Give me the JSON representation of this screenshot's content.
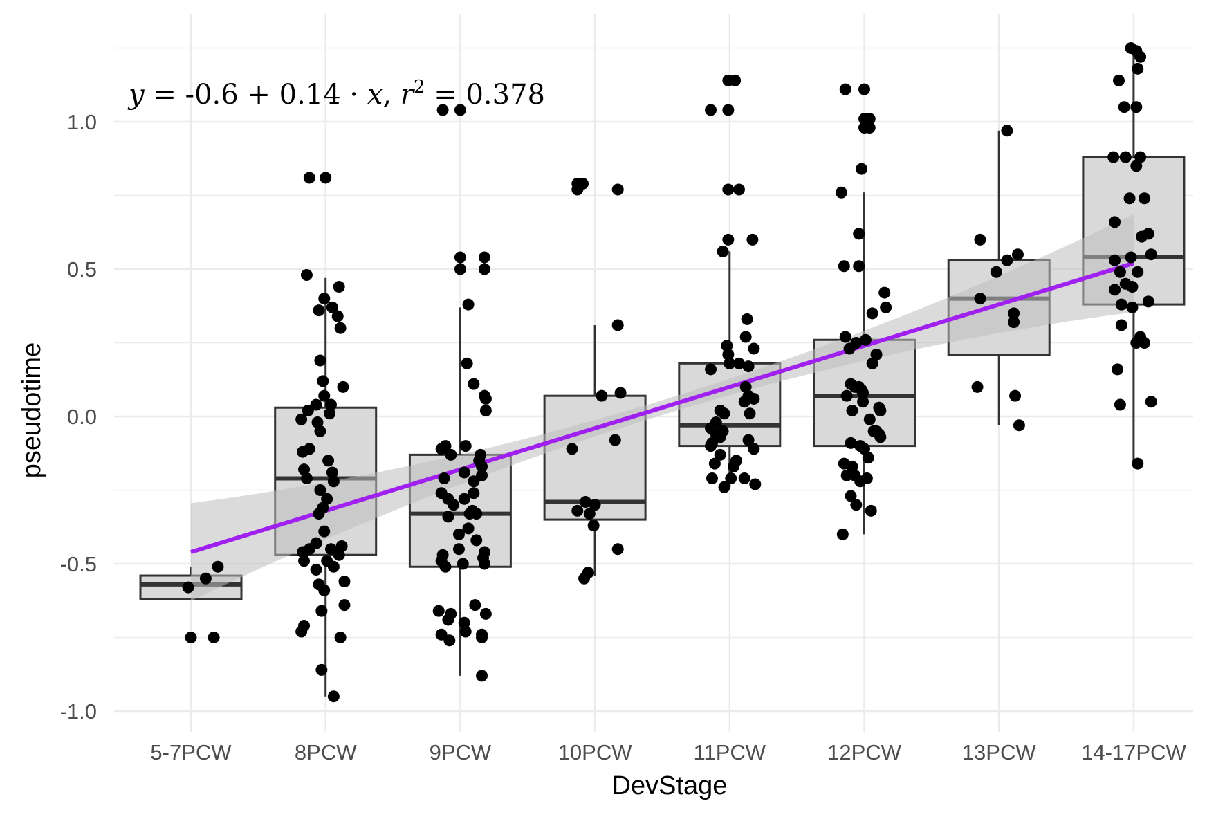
{
  "chart_data": {
    "type": "box",
    "xlabel": "DevStage",
    "ylabel": "pseudotime",
    "categories": [
      "5-7PCW",
      "8PCW",
      "9PCW",
      "10PCW",
      "11PCW",
      "12PCW",
      "13PCW",
      "14-17PCW"
    ],
    "y_ticks": [
      -1.0,
      -0.5,
      0.0,
      0.5,
      1.0
    ],
    "y_tick_labels": [
      "-1.0",
      "-0.5",
      "0.0",
      "0.5",
      "1.0"
    ],
    "ylim": [
      -1.08,
      1.27
    ],
    "grid": true,
    "legend": "none",
    "annotation": {
      "lhs": "y",
      "eq_rhs": " = -0.6 + 0.14 · ",
      "x_var": "x",
      "sep": ",  ",
      "r_var": "r",
      "r_exp": "2",
      "r_rhs": " = 0.378"
    },
    "regression": {
      "intercept": -0.6,
      "slope": 0.14,
      "r2": 0.378,
      "color": "#a020f0"
    },
    "colors": {
      "box_fill": "#d9d9d9",
      "box_stroke": "#333333",
      "point": "#000000",
      "ribbon": "#bebebe",
      "grid": "#ebebeb"
    },
    "boxes": [
      {
        "category": "5-7PCW",
        "q1": -0.62,
        "median": -0.57,
        "q3": -0.54,
        "whisker_low": -0.62,
        "whisker_high": -0.51
      },
      {
        "category": "8PCW",
        "q1": -0.47,
        "median": -0.21,
        "q3": 0.03,
        "whisker_low": -0.95,
        "whisker_high": 0.47
      },
      {
        "category": "9PCW",
        "q1": -0.51,
        "median": -0.33,
        "q3": -0.13,
        "whisker_low": -0.88,
        "whisker_high": 0.37
      },
      {
        "category": "10PCW",
        "q1": -0.35,
        "median": -0.29,
        "q3": 0.07,
        "whisker_low": -0.54,
        "whisker_high": 0.31
      },
      {
        "category": "11PCW",
        "q1": -0.1,
        "median": -0.03,
        "q3": 0.18,
        "whisker_low": -0.24,
        "whisker_high": 0.56
      },
      {
        "category": "12PCW",
        "q1": -0.1,
        "median": 0.07,
        "q3": 0.26,
        "whisker_low": -0.4,
        "whisker_high": 0.76
      },
      {
        "category": "13PCW",
        "q1": 0.21,
        "median": 0.4,
        "q3": 0.53,
        "whisker_low": -0.03,
        "whisker_high": 0.97
      },
      {
        "category": "14-17PCW",
        "q1": 0.38,
        "median": 0.54,
        "q3": 0.88,
        "whisker_low": -0.16,
        "whisker_high": 1.25
      }
    ],
    "points": [
      {
        "x": 0.98,
        "y": -0.58
      },
      {
        "x": 1.11,
        "y": -0.55
      },
      {
        "x": 1.2,
        "y": -0.51
      },
      {
        "x": 1.0,
        "y": -0.75
      },
      {
        "x": 1.17,
        "y": -0.75
      },
      {
        "x": 1.88,
        "y": 0.81
      },
      {
        "x": 2.0,
        "y": 0.81
      },
      {
        "x": 1.86,
        "y": 0.48
      },
      {
        "x": 2.1,
        "y": 0.44
      },
      {
        "x": 1.99,
        "y": 0.4
      },
      {
        "x": 2.05,
        "y": 0.37
      },
      {
        "x": 1.95,
        "y": 0.36
      },
      {
        "x": 2.09,
        "y": 0.34
      },
      {
        "x": 2.11,
        "y": 0.3
      },
      {
        "x": 1.96,
        "y": 0.19
      },
      {
        "x": 1.98,
        "y": 0.12
      },
      {
        "x": 2.13,
        "y": 0.1
      },
      {
        "x": 1.99,
        "y": 0.07
      },
      {
        "x": 1.93,
        "y": 0.04
      },
      {
        "x": 2.04,
        "y": 0.04
      },
      {
        "x": 1.87,
        "y": 0.02
      },
      {
        "x": 2.03,
        "y": 0.01
      },
      {
        "x": 1.82,
        "y": -0.01
      },
      {
        "x": 1.94,
        "y": -0.02
      },
      {
        "x": 1.96,
        "y": -0.05
      },
      {
        "x": 1.88,
        "y": -0.11
      },
      {
        "x": 1.83,
        "y": -0.12
      },
      {
        "x": 2.02,
        "y": -0.15
      },
      {
        "x": 1.84,
        "y": -0.18
      },
      {
        "x": 2.05,
        "y": -0.19
      },
      {
        "x": 1.86,
        "y": -0.21
      },
      {
        "x": 2.06,
        "y": -0.22
      },
      {
        "x": 1.96,
        "y": -0.25
      },
      {
        "x": 2.01,
        "y": -0.28
      },
      {
        "x": 1.98,
        "y": -0.31
      },
      {
        "x": 1.95,
        "y": -0.33
      },
      {
        "x": 1.99,
        "y": -0.39
      },
      {
        "x": 1.93,
        "y": -0.43
      },
      {
        "x": 2.12,
        "y": -0.44
      },
      {
        "x": 1.88,
        "y": -0.45
      },
      {
        "x": 2.04,
        "y": -0.45
      },
      {
        "x": 1.83,
        "y": -0.46
      },
      {
        "x": 2.1,
        "y": -0.47
      },
      {
        "x": 2.01,
        "y": -0.49
      },
      {
        "x": 1.84,
        "y": -0.49
      },
      {
        "x": 2.06,
        "y": -0.51
      },
      {
        "x": 1.93,
        "y": -0.52
      },
      {
        "x": 2.14,
        "y": -0.56
      },
      {
        "x": 1.95,
        "y": -0.57
      },
      {
        "x": 1.99,
        "y": -0.59
      },
      {
        "x": 2.14,
        "y": -0.64
      },
      {
        "x": 1.97,
        "y": -0.66
      },
      {
        "x": 1.84,
        "y": -0.71
      },
      {
        "x": 1.82,
        "y": -0.73
      },
      {
        "x": 2.11,
        "y": -0.75
      },
      {
        "x": 1.97,
        "y": -0.86
      },
      {
        "x": 2.06,
        "y": -0.95
      },
      {
        "x": 2.87,
        "y": 1.04
      },
      {
        "x": 3.0,
        "y": 1.04
      },
      {
        "x": 3.0,
        "y": 0.54
      },
      {
        "x": 3.18,
        "y": 0.54
      },
      {
        "x": 3.0,
        "y": 0.5
      },
      {
        "x": 3.18,
        "y": 0.5
      },
      {
        "x": 3.06,
        "y": 0.38
      },
      {
        "x": 3.05,
        "y": 0.18
      },
      {
        "x": 3.1,
        "y": 0.11
      },
      {
        "x": 3.18,
        "y": 0.07
      },
      {
        "x": 3.19,
        "y": 0.06
      },
      {
        "x": 3.19,
        "y": 0.02
      },
      {
        "x": 2.89,
        "y": -0.1
      },
      {
        "x": 2.86,
        "y": -0.11
      },
      {
        "x": 3.04,
        "y": -0.1
      },
      {
        "x": 3.15,
        "y": -0.13
      },
      {
        "x": 3.14,
        "y": -0.15
      },
      {
        "x": 2.93,
        "y": -0.13
      },
      {
        "x": 3.16,
        "y": -0.17
      },
      {
        "x": 3.16,
        "y": -0.2
      },
      {
        "x": 3.03,
        "y": -0.19
      },
      {
        "x": 2.88,
        "y": -0.21
      },
      {
        "x": 3.1,
        "y": -0.22
      },
      {
        "x": 2.86,
        "y": -0.26
      },
      {
        "x": 2.91,
        "y": -0.28
      },
      {
        "x": 3.1,
        "y": -0.26
      },
      {
        "x": 3.03,
        "y": -0.28
      },
      {
        "x": 2.95,
        "y": -0.3
      },
      {
        "x": 3.07,
        "y": -0.33
      },
      {
        "x": 3.09,
        "y": -0.32
      },
      {
        "x": 2.91,
        "y": -0.34
      },
      {
        "x": 3.12,
        "y": -0.33
      },
      {
        "x": 3.06,
        "y": -0.38
      },
      {
        "x": 2.99,
        "y": -0.4
      },
      {
        "x": 3.12,
        "y": -0.42
      },
      {
        "x": 3.18,
        "y": -0.46
      },
      {
        "x": 2.99,
        "y": -0.45
      },
      {
        "x": 3.17,
        "y": -0.48
      },
      {
        "x": 2.87,
        "y": -0.47
      },
      {
        "x": 2.86,
        "y": -0.49
      },
      {
        "x": 3.02,
        "y": -0.5
      },
      {
        "x": 3.18,
        "y": -0.5
      },
      {
        "x": 2.89,
        "y": -0.51
      },
      {
        "x": 3.11,
        "y": -0.64
      },
      {
        "x": 2.84,
        "y": -0.66
      },
      {
        "x": 2.93,
        "y": -0.67
      },
      {
        "x": 3.19,
        "y": -0.67
      },
      {
        "x": 2.91,
        "y": -0.69
      },
      {
        "x": 3.03,
        "y": -0.7
      },
      {
        "x": 3.04,
        "y": -0.73
      },
      {
        "x": 2.86,
        "y": -0.74
      },
      {
        "x": 3.16,
        "y": -0.74
      },
      {
        "x": 2.92,
        "y": -0.76
      },
      {
        "x": 3.16,
        "y": -0.75
      },
      {
        "x": 3.16,
        "y": -0.88
      },
      {
        "x": 3.87,
        "y": 0.79
      },
      {
        "x": 3.91,
        "y": 0.79
      },
      {
        "x": 3.87,
        "y": 0.77
      },
      {
        "x": 4.17,
        "y": 0.77
      },
      {
        "x": 4.17,
        "y": 0.31
      },
      {
        "x": 4.19,
        "y": 0.08
      },
      {
        "x": 4.05,
        "y": 0.07
      },
      {
        "x": 4.15,
        "y": -0.08
      },
      {
        "x": 3.83,
        "y": -0.11
      },
      {
        "x": 3.93,
        "y": -0.29
      },
      {
        "x": 4.0,
        "y": -0.3
      },
      {
        "x": 3.87,
        "y": -0.32
      },
      {
        "x": 3.96,
        "y": -0.33
      },
      {
        "x": 3.99,
        "y": -0.37
      },
      {
        "x": 4.17,
        "y": -0.45
      },
      {
        "x": 3.95,
        "y": -0.53
      },
      {
        "x": 3.92,
        "y": -0.55
      },
      {
        "x": 4.99,
        "y": 1.14
      },
      {
        "x": 5.04,
        "y": 1.14
      },
      {
        "x": 4.86,
        "y": 1.04
      },
      {
        "x": 4.99,
        "y": 1.04
      },
      {
        "x": 4.99,
        "y": 0.77
      },
      {
        "x": 5.07,
        "y": 0.77
      },
      {
        "x": 4.99,
        "y": 0.6
      },
      {
        "x": 5.17,
        "y": 0.6
      },
      {
        "x": 4.95,
        "y": 0.56
      },
      {
        "x": 5.13,
        "y": 0.33
      },
      {
        "x": 5.12,
        "y": 0.27
      },
      {
        "x": 4.98,
        "y": 0.24
      },
      {
        "x": 5.18,
        "y": 0.23
      },
      {
        "x": 4.99,
        "y": 0.21
      },
      {
        "x": 5.07,
        "y": 0.18
      },
      {
        "x": 5.0,
        "y": 0.18
      },
      {
        "x": 5.14,
        "y": 0.17
      },
      {
        "x": 4.86,
        "y": 0.16
      },
      {
        "x": 5.12,
        "y": 0.1
      },
      {
        "x": 5.14,
        "y": 0.07
      },
      {
        "x": 5.18,
        "y": 0.06
      },
      {
        "x": 5.11,
        "y": 0.05
      },
      {
        "x": 4.93,
        "y": 0.02
      },
      {
        "x": 5.15,
        "y": 0.01
      },
      {
        "x": 4.96,
        "y": 0.01
      },
      {
        "x": 4.9,
        "y": -0.02
      },
      {
        "x": 4.86,
        "y": -0.04
      },
      {
        "x": 4.95,
        "y": -0.05
      },
      {
        "x": 4.9,
        "y": -0.06
      },
      {
        "x": 4.93,
        "y": -0.07
      },
      {
        "x": 5.14,
        "y": -0.08
      },
      {
        "x": 5.18,
        "y": -0.11
      },
      {
        "x": 4.87,
        "y": -0.09
      },
      {
        "x": 4.86,
        "y": -0.1
      },
      {
        "x": 4.93,
        "y": -0.13
      },
      {
        "x": 4.89,
        "y": -0.16
      },
      {
        "x": 5.03,
        "y": -0.17
      },
      {
        "x": 5.05,
        "y": -0.15
      },
      {
        "x": 4.87,
        "y": -0.21
      },
      {
        "x": 5.11,
        "y": -0.21
      },
      {
        "x": 5.01,
        "y": -0.21
      },
      {
        "x": 4.96,
        "y": -0.24
      },
      {
        "x": 5.19,
        "y": -0.23
      },
      {
        "x": 5.86,
        "y": 1.11
      },
      {
        "x": 6.0,
        "y": 1.11
      },
      {
        "x": 6.0,
        "y": 1.01
      },
      {
        "x": 6.04,
        "y": 1.01
      },
      {
        "x": 6.0,
        "y": 0.98
      },
      {
        "x": 6.04,
        "y": 0.98
      },
      {
        "x": 5.98,
        "y": 0.84
      },
      {
        "x": 5.83,
        "y": 0.76
      },
      {
        "x": 5.96,
        "y": 0.62
      },
      {
        "x": 5.85,
        "y": 0.51
      },
      {
        "x": 5.96,
        "y": 0.51
      },
      {
        "x": 6.15,
        "y": 0.42
      },
      {
        "x": 6.16,
        "y": 0.37
      },
      {
        "x": 6.06,
        "y": 0.35
      },
      {
        "x": 5.86,
        "y": 0.27
      },
      {
        "x": 5.94,
        "y": 0.25
      },
      {
        "x": 6.01,
        "y": 0.26
      },
      {
        "x": 5.89,
        "y": 0.23
      },
      {
        "x": 6.09,
        "y": 0.21
      },
      {
        "x": 6.06,
        "y": 0.18
      },
      {
        "x": 5.9,
        "y": 0.11
      },
      {
        "x": 5.93,
        "y": 0.1
      },
      {
        "x": 5.96,
        "y": 0.1
      },
      {
        "x": 5.98,
        "y": 0.09
      },
      {
        "x": 5.99,
        "y": 0.08
      },
      {
        "x": 5.87,
        "y": 0.07
      },
      {
        "x": 5.99,
        "y": 0.05
      },
      {
        "x": 6.11,
        "y": 0.03
      },
      {
        "x": 5.91,
        "y": 0.02
      },
      {
        "x": 6.12,
        "y": 0.02
      },
      {
        "x": 6.04,
        "y": -0.01
      },
      {
        "x": 6.07,
        "y": -0.05
      },
      {
        "x": 6.09,
        "y": -0.05
      },
      {
        "x": 6.11,
        "y": -0.06
      },
      {
        "x": 6.12,
        "y": -0.07
      },
      {
        "x": 5.9,
        "y": -0.09
      },
      {
        "x": 5.97,
        "y": -0.1
      },
      {
        "x": 6.0,
        "y": -0.11
      },
      {
        "x": 6.03,
        "y": -0.14
      },
      {
        "x": 5.85,
        "y": -0.16
      },
      {
        "x": 5.91,
        "y": -0.17
      },
      {
        "x": 5.93,
        "y": -0.2
      },
      {
        "x": 5.87,
        "y": -0.2
      },
      {
        "x": 6.02,
        "y": -0.21
      },
      {
        "x": 5.97,
        "y": -0.22
      },
      {
        "x": 5.9,
        "y": -0.27
      },
      {
        "x": 5.94,
        "y": -0.3
      },
      {
        "x": 6.05,
        "y": -0.32
      },
      {
        "x": 5.84,
        "y": -0.4
      },
      {
        "x": 7.06,
        "y": 0.97
      },
      {
        "x": 6.86,
        "y": 0.6
      },
      {
        "x": 7.14,
        "y": 0.55
      },
      {
        "x": 7.06,
        "y": 0.53
      },
      {
        "x": 6.98,
        "y": 0.49
      },
      {
        "x": 6.86,
        "y": 0.4
      },
      {
        "x": 7.11,
        "y": 0.35
      },
      {
        "x": 7.11,
        "y": 0.32
      },
      {
        "x": 6.84,
        "y": 0.1
      },
      {
        "x": 7.12,
        "y": 0.07
      },
      {
        "x": 7.15,
        "y": -0.03
      },
      {
        "x": 7.98,
        "y": 1.25
      },
      {
        "x": 8.02,
        "y": 1.24
      },
      {
        "x": 8.05,
        "y": 1.22
      },
      {
        "x": 8.03,
        "y": 1.18
      },
      {
        "x": 7.89,
        "y": 1.14
      },
      {
        "x": 8.02,
        "y": 1.05
      },
      {
        "x": 7.93,
        "y": 1.05
      },
      {
        "x": 7.94,
        "y": 0.88
      },
      {
        "x": 7.85,
        "y": 0.88
      },
      {
        "x": 8.05,
        "y": 0.88
      },
      {
        "x": 8.02,
        "y": 0.85
      },
      {
        "x": 7.97,
        "y": 0.74
      },
      {
        "x": 8.08,
        "y": 0.74
      },
      {
        "x": 7.86,
        "y": 0.66
      },
      {
        "x": 8.11,
        "y": 0.62
      },
      {
        "x": 8.06,
        "y": 0.61
      },
      {
        "x": 8.13,
        "y": 0.55
      },
      {
        "x": 7.98,
        "y": 0.54
      },
      {
        "x": 7.86,
        "y": 0.53
      },
      {
        "x": 7.9,
        "y": 0.49
      },
      {
        "x": 8.03,
        "y": 0.49
      },
      {
        "x": 7.94,
        "y": 0.45
      },
      {
        "x": 7.99,
        "y": 0.44
      },
      {
        "x": 7.86,
        "y": 0.43
      },
      {
        "x": 8.11,
        "y": 0.39
      },
      {
        "x": 7.91,
        "y": 0.38
      },
      {
        "x": 7.99,
        "y": 0.37
      },
      {
        "x": 7.91,
        "y": 0.31
      },
      {
        "x": 8.05,
        "y": 0.27
      },
      {
        "x": 8.02,
        "y": 0.25
      },
      {
        "x": 8.08,
        "y": 0.25
      },
      {
        "x": 7.88,
        "y": 0.16
      },
      {
        "x": 7.9,
        "y": 0.04
      },
      {
        "x": 8.13,
        "y": 0.05
      },
      {
        "x": 8.03,
        "y": -0.16
      }
    ]
  }
}
